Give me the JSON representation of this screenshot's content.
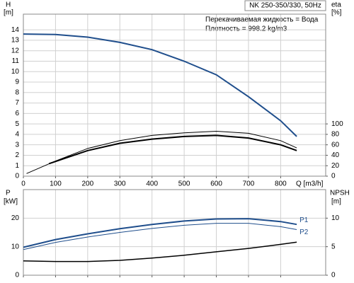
{
  "chart_data": [
    {
      "type": "line",
      "title": "NK 250-350/330, 50Hz",
      "annotations": [
        "Перекачиваемая жидкость = Вода",
        "Плотность = 998.2 kg/m3"
      ],
      "ylabel": "H",
      "yunit": "[m]",
      "y2label": "eta",
      "y2unit": "[%]",
      "xlabel": "Q [m3/h]",
      "xlim": [
        0,
        940
      ],
      "xticks": [
        0,
        100,
        200,
        300,
        400,
        500,
        600,
        700,
        800
      ],
      "ylim": [
        0,
        15.5
      ],
      "yticks": [
        0,
        1,
        2,
        3,
        4,
        5,
        6,
        7,
        8,
        9,
        10,
        11,
        12,
        13,
        14
      ],
      "y2lim": [
        0,
        310
      ],
      "y2ticks": [
        0,
        20,
        40,
        60,
        80,
        100
      ],
      "grid": true,
      "series": [
        {
          "color": "#1f4e8c",
          "line_width": 2,
          "x": [
            0,
            100,
            200,
            300,
            400,
            500,
            600,
            700,
            800,
            850
          ],
          "values": [
            13.6,
            13.55,
            13.3,
            12.8,
            12.1,
            11.0,
            9.7,
            7.6,
            5.3,
            3.8
          ]
        },
        {
          "color": "#000000",
          "line_width": 1,
          "axis": "y2",
          "x": [
            10,
            100,
            200,
            300,
            400,
            500,
            600,
            700,
            800,
            850
          ],
          "values": [
            5,
            29,
            53,
            68,
            78,
            83,
            86,
            82,
            68,
            54
          ]
        },
        {
          "color": "#000000",
          "line_width": 2,
          "axis": "y2",
          "x": [
            80,
            200,
            300,
            400,
            500,
            600,
            700,
            800,
            850
          ],
          "values": [
            24,
            49,
            63,
            71,
            76,
            78,
            73,
            60,
            49
          ]
        }
      ]
    },
    {
      "type": "line",
      "ylabel": "P",
      "yunit": "[kW]",
      "y2label": "NPSH",
      "y2unit": "[m]",
      "xlim": [
        0,
        940
      ],
      "ylim": [
        0,
        30
      ],
      "yticks": [
        0,
        10,
        20
      ],
      "y2lim": [
        0,
        15
      ],
      "y2ticks": [
        0,
        5,
        10
      ],
      "grid": true,
      "series": [
        {
          "name": "P1",
          "color": "#1f4e8c",
          "line_width": 2,
          "x": [
            0,
            100,
            200,
            300,
            400,
            500,
            600,
            700,
            800,
            850
          ],
          "values": [
            9.8,
            12.5,
            14.5,
            16.3,
            17.8,
            19.0,
            19.7,
            19.8,
            18.8,
            17.8
          ]
        },
        {
          "name": "P2",
          "color": "#1f4e8c",
          "line_width": 1,
          "x": [
            0,
            100,
            200,
            300,
            400,
            500,
            600,
            700,
            800,
            850
          ],
          "values": [
            9.0,
            11.5,
            13.4,
            15.0,
            16.4,
            17.5,
            18.2,
            18.2,
            17.0,
            16.0
          ]
        },
        {
          "color": "#000000",
          "line_width": 1.5,
          "axis": "y2",
          "x": [
            0,
            100,
            200,
            300,
            400,
            500,
            600,
            700,
            800,
            850
          ],
          "values": [
            2.5,
            2.4,
            2.4,
            2.6,
            3.0,
            3.5,
            4.1,
            4.7,
            5.4,
            5.8
          ]
        }
      ]
    }
  ]
}
